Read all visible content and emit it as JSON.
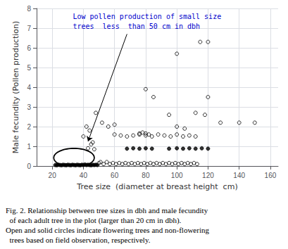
{
  "chart_data": {
    "type": "scatter",
    "xlabel": "Tree size  (diameter at breast height  cm)",
    "ylabel": "Male fecundity (Pollen production)",
    "xlim": [
      10,
      165
    ],
    "ylim": [
      0,
      8
    ],
    "xticks": [
      20,
      40,
      60,
      80,
      100,
      120,
      140,
      160
    ],
    "yticks": [
      0,
      1,
      2,
      3,
      4,
      5,
      6,
      7,
      8
    ],
    "grid": true,
    "series": [
      {
        "marker": "open_circle",
        "color": "#000000",
        "x": [
          40,
          42,
          44,
          46,
          48,
          50,
          51,
          53,
          55,
          57,
          59,
          61,
          63,
          65,
          67,
          69,
          71,
          73,
          75,
          77,
          79,
          81,
          83,
          85,
          87,
          89,
          91,
          93,
          95,
          97,
          99,
          101,
          103,
          105,
          107,
          109,
          111,
          113,
          60,
          64,
          68,
          72,
          76,
          80,
          84,
          88,
          92,
          96,
          100,
          104,
          108,
          112,
          76,
          78,
          80,
          82,
          52,
          56,
          60,
          80,
          85,
          95,
          100,
          105,
          112,
          118,
          120,
          128,
          100,
          115,
          120,
          140,
          150,
          43,
          45,
          47
        ],
        "values": [
          1.5,
          2.0,
          1.8,
          1.2,
          2.7,
          0.15,
          0.2,
          0.1,
          0.2,
          0.1,
          0.15,
          0.1,
          0.15,
          0.1,
          0.15,
          0.1,
          0.15,
          0.1,
          0.15,
          0.1,
          0.15,
          0.1,
          0.15,
          0.1,
          0.15,
          0.1,
          0.15,
          0.1,
          0.15,
          0.1,
          0.15,
          0.1,
          0.15,
          0.1,
          0.15,
          0.1,
          0.15,
          0.1,
          1.6,
          1.55,
          1.5,
          1.55,
          1.6,
          1.55,
          1.5,
          1.6,
          1.55,
          1.5,
          1.6,
          1.5,
          1.55,
          1.5,
          1.65,
          1.7,
          1.65,
          1.6,
          2.2,
          2.0,
          2.1,
          3.9,
          3.5,
          2.6,
          2.0,
          1.9,
          2.7,
          2.6,
          3.5,
          2.2,
          5.7,
          6.3,
          6.3,
          2.2,
          2.2,
          0.9,
          1.1,
          0.85
        ]
      },
      {
        "marker": "circle",
        "color": "#000000",
        "x": [
          22,
          23,
          24,
          25,
          26,
          27,
          28,
          29,
          30,
          31,
          32,
          33,
          34,
          35,
          36,
          37,
          38,
          39,
          40,
          41,
          42,
          43,
          44,
          45,
          46,
          47,
          48,
          49,
          68,
          72,
          76,
          80,
          84,
          95,
          100,
          104,
          108,
          112,
          116,
          120
        ],
        "values": [
          0.05,
          0.04,
          0.06,
          0.05,
          0.04,
          0.06,
          0.05,
          0.04,
          0.06,
          0.05,
          0.04,
          0.06,
          0.05,
          0.04,
          0.06,
          0.05,
          0.04,
          0.06,
          0.05,
          0.07,
          0.05,
          0.06,
          0.05,
          0.04,
          0.06,
          0.05,
          0.06,
          0.05,
          0.88,
          0.9,
          0.88,
          0.9,
          0.88,
          0.88,
          0.9,
          0.88,
          0.9,
          0.88,
          0.9,
          0.88
        ]
      }
    ],
    "annotations": [
      {
        "text": "Low pollen production of small size\ntrees  less  than 50 cm in dbh",
        "color": "#0000cc",
        "arrow_from": [
          68,
          6.7
        ],
        "arrow_to": [
          43,
          1.25
        ]
      }
    ],
    "ellipse": {
      "center": [
        34,
        0.42
      ],
      "width": 26,
      "height": 0.95
    },
    "caption": [
      "Fig. 2. Relationship between tree sizes in dbh and male fecundity",
      "  of each adult tree in the plot (larger than 20 cm in dbh).",
      "Open and solid circles indicate flowering trees and non-flowering",
      "  trees based on field observation, respectively."
    ]
  }
}
